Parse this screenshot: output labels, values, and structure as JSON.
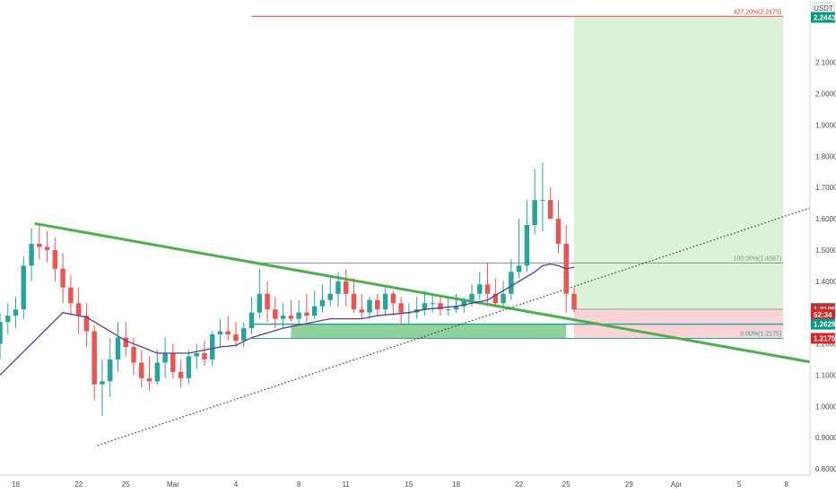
{
  "chart_data": {
    "type": "candlestick",
    "currency": "USDT",
    "y_ticks": [
      "2.1000",
      "2.0000",
      "1.9000",
      "1.8000",
      "1.7000",
      "1.6000",
      "1.5000",
      "1.4000",
      "1.3000",
      "1.2000",
      "1.1000",
      "1.0000",
      "0.9000",
      "0.8000"
    ],
    "y_tick_values": [
      2.1,
      2.0,
      1.9,
      1.8,
      1.7,
      1.6,
      1.5,
      1.4,
      1.3,
      1.2,
      1.1,
      1.0,
      0.9,
      0.8
    ],
    "ylim": [
      0.78,
      2.3
    ],
    "x_ticks": [
      "18",
      "22",
      "25",
      "Mar",
      "4",
      "8",
      "11",
      "15",
      "18",
      "22",
      "25",
      "29",
      "Apr",
      "5",
      "8"
    ],
    "x_tick_values": [
      0,
      4,
      7,
      10,
      14,
      18,
      21,
      25,
      28,
      32,
      35,
      39,
      42,
      46,
      49
    ],
    "xlim": [
      -1,
      50.5
    ],
    "price_tags": [
      {
        "label": "2.2443",
        "value": 2.2443,
        "color": "#089981"
      },
      {
        "label": "1.3130",
        "value": 1.313,
        "color": "#089981"
      },
      {
        "label": "1.3105",
        "value": 1.3105,
        "color": "#d62728"
      },
      {
        "label": "52:34",
        "value": 1.293,
        "color": "#d62728"
      },
      {
        "label": "1.2629",
        "value": 1.2629,
        "color": "#089981"
      },
      {
        "label": "1.2175",
        "value": 1.2175,
        "color": "#d62728"
      }
    ],
    "fib_levels": [
      {
        "label": "427.20%(2.2475)",
        "value": 2.2475,
        "color": "#e53935",
        "x_from": 15
      },
      {
        "label": "100.00%(1.4587)",
        "value": 1.4587,
        "color": "#8c8c8c",
        "x_from": 15
      },
      {
        "label": "0.00%(1.2175)",
        "value": 1.2175,
        "color": "#26a69a",
        "x_from": 15
      }
    ],
    "position": {
      "entry": 1.3105,
      "target": 2.2443,
      "stop": 1.2175,
      "x_start": 35.5,
      "x_end": 48.8
    },
    "demand_zone": {
      "x_start": 17.5,
      "x_end": 35,
      "y_low": 1.2175,
      "y_high": 1.2629
    },
    "trendlines": [
      {
        "name": "",
        "style": "solid",
        "color": "#4caf50",
        "points": [
          [
            1.2,
            1.585
          ],
          [
            50.5,
            1.142
          ]
        ]
      },
      {
        "name": "",
        "style": "dotted",
        "color": "#333333",
        "points": [
          [
            5.2,
            0.875
          ],
          [
            50.5,
            1.635
          ]
        ]
      }
    ],
    "moving_average": {
      "color": "#5c3a9e",
      "x": [
        -1,
        1,
        3,
        4.5,
        6,
        7,
        8,
        9,
        10,
        11,
        12,
        13,
        14,
        15,
        16,
        17,
        18,
        19,
        20,
        21,
        22,
        23,
        24,
        25,
        26,
        27,
        28,
        29,
        30,
        31,
        32,
        33,
        33.5,
        34,
        34.5,
        35,
        35.5
      ],
      "y": [
        1.1,
        1.2,
        1.3,
        1.285,
        1.24,
        1.21,
        1.19,
        1.17,
        1.17,
        1.17,
        1.18,
        1.19,
        1.195,
        1.22,
        1.235,
        1.25,
        1.26,
        1.27,
        1.28,
        1.28,
        1.28,
        1.29,
        1.295,
        1.3,
        1.31,
        1.315,
        1.32,
        1.33,
        1.34,
        1.37,
        1.4,
        1.43,
        1.45,
        1.455,
        1.45,
        1.44,
        1.445
      ]
    },
    "candles": {
      "x": [
        -1,
        -0.5,
        0,
        0.5,
        1,
        1.5,
        2,
        2.5,
        3,
        3.5,
        4,
        4.5,
        5,
        5.5,
        6,
        6.5,
        7,
        7.5,
        8,
        8.5,
        9,
        9.5,
        10,
        10.5,
        11,
        11.5,
        12,
        12.5,
        13,
        13.5,
        14,
        14.5,
        15,
        15.5,
        16,
        16.5,
        17,
        17.5,
        18,
        18.5,
        19,
        19.5,
        20,
        20.5,
        21,
        21.5,
        22,
        22.5,
        23,
        23.5,
        24,
        24.5,
        25,
        25.5,
        26,
        26.5,
        27,
        27.5,
        28,
        28.5,
        29,
        29.5,
        30,
        30.5,
        31,
        31.5,
        32,
        32.5,
        33,
        33.5,
        34,
        34.5,
        35,
        35.5
      ],
      "o": [
        1.2,
        1.27,
        1.29,
        1.31,
        1.45,
        1.52,
        1.51,
        1.5,
        1.44,
        1.38,
        1.33,
        1.29,
        1.24,
        1.07,
        1.08,
        1.15,
        1.22,
        1.19,
        1.14,
        1.09,
        1.08,
        1.14,
        1.17,
        1.11,
        1.09,
        1.16,
        1.17,
        1.15,
        1.23,
        1.24,
        1.23,
        1.21,
        1.25,
        1.3,
        1.36,
        1.31,
        1.28,
        1.29,
        1.28,
        1.3,
        1.29,
        1.32,
        1.34,
        1.36,
        1.4,
        1.36,
        1.31,
        1.3,
        1.34,
        1.31,
        1.36,
        1.33,
        1.3,
        1.3,
        1.31,
        1.33,
        1.33,
        1.31,
        1.31,
        1.32,
        1.34,
        1.36,
        1.39,
        1.36,
        1.33,
        1.36,
        1.43,
        1.45,
        1.58,
        1.66,
        1.66,
        1.6,
        1.52,
        1.36
      ],
      "h": [
        1.3,
        1.33,
        1.35,
        1.48,
        1.57,
        1.58,
        1.56,
        1.54,
        1.49,
        1.42,
        1.38,
        1.33,
        1.26,
        1.15,
        1.22,
        1.27,
        1.27,
        1.22,
        1.18,
        1.16,
        1.18,
        1.22,
        1.2,
        1.15,
        1.18,
        1.2,
        1.21,
        1.24,
        1.28,
        1.29,
        1.27,
        1.27,
        1.35,
        1.44,
        1.4,
        1.35,
        1.33,
        1.34,
        1.34,
        1.36,
        1.37,
        1.39,
        1.42,
        1.43,
        1.44,
        1.41,
        1.36,
        1.35,
        1.36,
        1.38,
        1.37,
        1.35,
        1.33,
        1.35,
        1.37,
        1.36,
        1.35,
        1.35,
        1.36,
        1.35,
        1.39,
        1.43,
        1.46,
        1.41,
        1.4,
        1.47,
        1.6,
        1.66,
        1.76,
        1.78,
        1.7,
        1.66,
        1.58,
        1.38
      ],
      "l": [
        1.15,
        1.23,
        1.25,
        1.28,
        1.4,
        1.47,
        1.46,
        1.4,
        1.33,
        1.29,
        1.23,
        1.19,
        1.02,
        0.97,
        1.03,
        1.11,
        1.16,
        1.1,
        1.06,
        1.05,
        1.07,
        1.09,
        1.09,
        1.06,
        1.07,
        1.12,
        1.13,
        1.13,
        1.19,
        1.21,
        1.19,
        1.19,
        1.23,
        1.28,
        1.27,
        1.25,
        1.25,
        1.27,
        1.26,
        1.27,
        1.28,
        1.3,
        1.32,
        1.32,
        1.32,
        1.3,
        1.28,
        1.28,
        1.29,
        1.29,
        1.29,
        1.26,
        1.26,
        1.28,
        1.29,
        1.3,
        1.29,
        1.29,
        1.3,
        1.3,
        1.32,
        1.34,
        1.32,
        1.32,
        1.32,
        1.34,
        1.41,
        1.43,
        1.55,
        1.56,
        1.6,
        1.49,
        1.3,
        1.3
      ],
      "c": [
        1.27,
        1.29,
        1.31,
        1.45,
        1.52,
        1.51,
        1.5,
        1.44,
        1.38,
        1.33,
        1.29,
        1.24,
        1.07,
        1.08,
        1.15,
        1.22,
        1.19,
        1.14,
        1.09,
        1.08,
        1.14,
        1.17,
        1.11,
        1.09,
        1.16,
        1.17,
        1.15,
        1.23,
        1.24,
        1.23,
        1.21,
        1.25,
        1.3,
        1.36,
        1.31,
        1.28,
        1.29,
        1.28,
        1.3,
        1.29,
        1.32,
        1.34,
        1.36,
        1.4,
        1.36,
        1.31,
        1.3,
        1.34,
        1.31,
        1.36,
        1.33,
        1.3,
        1.3,
        1.31,
        1.33,
        1.33,
        1.31,
        1.31,
        1.32,
        1.34,
        1.36,
        1.39,
        1.36,
        1.33,
        1.36,
        1.43,
        1.45,
        1.58,
        1.66,
        1.66,
        1.6,
        1.52,
        1.36,
        1.31
      ]
    }
  }
}
